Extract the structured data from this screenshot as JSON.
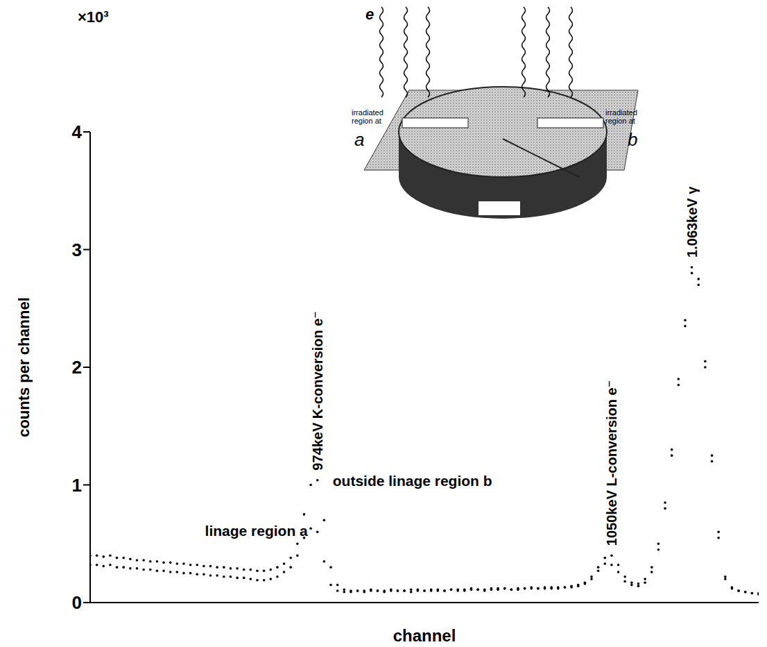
{
  "chart_data": {
    "type": "scatter",
    "x_label": "channel",
    "y_label": "counts per channel",
    "y_scale_label": "×10³",
    "xlim": [
      0,
      100
    ],
    "ylim": [
      0,
      4
    ],
    "yticks": [
      0,
      1,
      2,
      3,
      4
    ],
    "tick_labels": "y",
    "grid": false,
    "marker": "dot",
    "x": [
      0,
      1,
      2,
      3,
      4,
      5,
      6,
      7,
      8,
      9,
      10,
      11,
      12,
      13,
      14,
      15,
      16,
      17,
      18,
      19,
      20,
      21,
      22,
      23,
      24,
      25,
      26,
      27,
      28,
      29,
      30,
      31,
      32,
      33,
      34,
      35,
      36,
      37,
      38,
      39,
      40,
      41,
      42,
      43,
      44,
      45,
      46,
      47,
      48,
      49,
      50,
      51,
      52,
      53,
      54,
      55,
      56,
      57,
      58,
      59,
      60,
      61,
      62,
      63,
      64,
      65,
      66,
      67,
      68,
      69,
      70,
      71,
      72,
      73,
      74,
      75,
      76,
      77,
      78,
      79,
      80,
      81,
      82,
      83,
      84,
      85,
      86,
      87,
      88,
      89,
      90,
      91,
      92,
      93,
      94,
      95,
      96,
      97,
      98,
      99,
      100
    ],
    "series": [
      {
        "name": "linage region a",
        "color": "#000000",
        "values": [
          0.32,
          0.32,
          0.31,
          0.32,
          0.3,
          0.3,
          0.29,
          0.29,
          0.28,
          0.28,
          0.27,
          0.27,
          0.26,
          0.26,
          0.25,
          0.25,
          0.24,
          0.24,
          0.23,
          0.23,
          0.22,
          0.22,
          0.21,
          0.21,
          0.2,
          0.19,
          0.19,
          0.2,
          0.22,
          0.26,
          0.3,
          0.4,
          0.55,
          0.63,
          0.6,
          0.35,
          0.15,
          0.1,
          0.09,
          0.09,
          0.1,
          0.09,
          0.1,
          0.1,
          0.09,
          0.1,
          0.1,
          0.1,
          0.09,
          0.1,
          0.1,
          0.1,
          0.1,
          0.1,
          0.11,
          0.1,
          0.1,
          0.11,
          0.11,
          0.1,
          0.11,
          0.11,
          0.12,
          0.11,
          0.11,
          0.12,
          0.12,
          0.12,
          0.12,
          0.12,
          0.12,
          0.13,
          0.13,
          0.14,
          0.16,
          0.2,
          0.27,
          0.33,
          0.32,
          0.26,
          0.18,
          0.15,
          0.14,
          0.17,
          0.26,
          0.45,
          0.8,
          1.25,
          1.85,
          2.35,
          2.85,
          2.75,
          2.05,
          1.25,
          0.6,
          0.22,
          0.13,
          0.1,
          0.09,
          0.08,
          0.07
        ]
      },
      {
        "name": "outside linage region b",
        "color": "#000000",
        "values": [
          0.4,
          0.4,
          0.39,
          0.4,
          0.38,
          0.38,
          0.37,
          0.36,
          0.36,
          0.35,
          0.35,
          0.34,
          0.34,
          0.33,
          0.33,
          0.32,
          0.32,
          0.31,
          0.31,
          0.3,
          0.3,
          0.29,
          0.29,
          0.28,
          0.28,
          0.27,
          0.27,
          0.28,
          0.3,
          0.33,
          0.38,
          0.5,
          0.75,
          1.0,
          1.04,
          0.7,
          0.3,
          0.15,
          0.11,
          0.1,
          0.1,
          0.1,
          0.11,
          0.1,
          0.1,
          0.11,
          0.1,
          0.1,
          0.11,
          0.11,
          0.1,
          0.11,
          0.11,
          0.1,
          0.11,
          0.11,
          0.11,
          0.12,
          0.11,
          0.11,
          0.12,
          0.12,
          0.12,
          0.11,
          0.12,
          0.12,
          0.13,
          0.12,
          0.13,
          0.13,
          0.13,
          0.13,
          0.14,
          0.15,
          0.17,
          0.22,
          0.3,
          0.38,
          0.4,
          0.32,
          0.22,
          0.17,
          0.16,
          0.2,
          0.3,
          0.5,
          0.85,
          1.3,
          1.9,
          2.4,
          2.8,
          2.7,
          2.0,
          1.2,
          0.55,
          0.2,
          0.12,
          0.1,
          0.09,
          0.08,
          0.08
        ]
      }
    ],
    "peaks": [
      {
        "label": "974keV K-conversion e⁻",
        "x": 34
      },
      {
        "label": "1050keV L-conversion e⁻",
        "x": 78
      },
      {
        "label": "1.063keV γ",
        "x": 90
      }
    ],
    "inset": {
      "beam_label": "e",
      "regions": [
        {
          "label": "irradiated region at",
          "letter": "a"
        },
        {
          "label": "irradiated region at",
          "letter": "b"
        }
      ]
    }
  }
}
